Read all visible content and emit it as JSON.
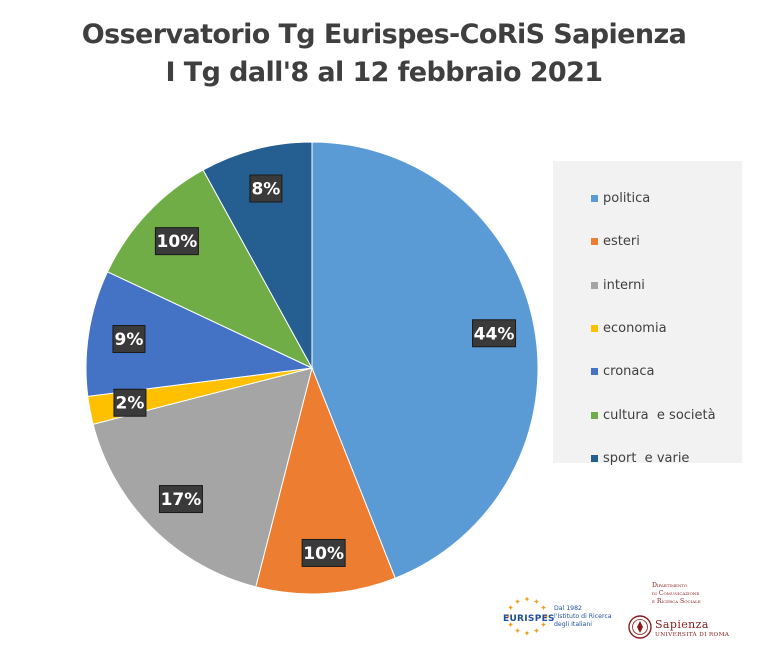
{
  "chart_data": {
    "type": "pie",
    "title": "Osservatorio Tg Eurispes-CoRiS Sapienza",
    "subtitle": "I Tg dall'8 al 12 febbraio 2021",
    "legend_position": "right",
    "slices": [
      {
        "label": "politica",
        "value": 44,
        "display": "44%",
        "color": "#5b9bd5"
      },
      {
        "label": "esteri",
        "value": 10,
        "display": "10%",
        "color": "#ed7d31"
      },
      {
        "label": "interni",
        "value": 17,
        "display": "17%",
        "color": "#a5a5a5"
      },
      {
        "label": "economia",
        "value": 2,
        "display": "2%",
        "color": "#ffc000"
      },
      {
        "label": "cronaca",
        "value": 9,
        "display": "9%",
        "color": "#4472c4"
      },
      {
        "label": "cultura  e società",
        "value": 10,
        "display": "10%",
        "color": "#70ad47"
      },
      {
        "label": "sport  e varie",
        "value": 8,
        "display": "8%",
        "color": "#255e91"
      }
    ]
  },
  "logos": {
    "eurispes": {
      "name": "EURISPES",
      "tagline": [
        "Dal 1982",
        "l'Istituto di Ricerca",
        "degli Italiani"
      ],
      "color": "#1f4e9c",
      "accent": "#f0a020"
    },
    "sapienza": {
      "department": [
        "Dipartimento",
        "di Comunicazione",
        "e Ricerca Sociale"
      ],
      "name": "Sapienza",
      "subname": "UNIVERSITÀ DI ROMA",
      "color": "#8a1c1c"
    }
  }
}
